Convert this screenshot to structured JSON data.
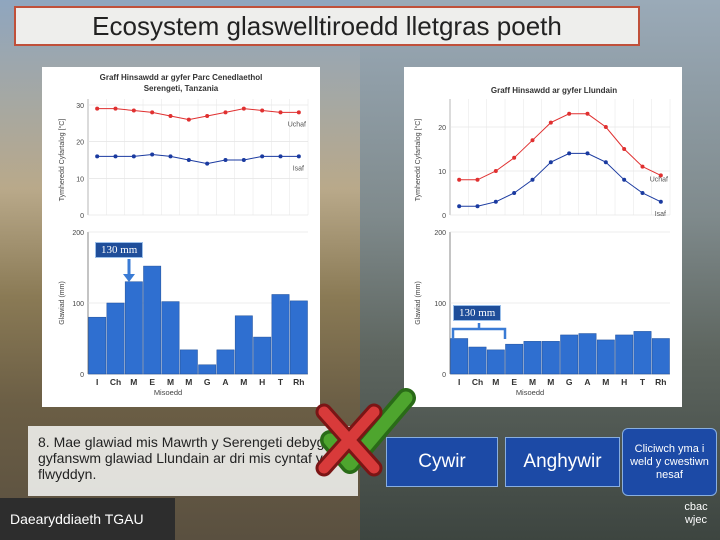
{
  "title": "Ecosystem glaswelltiroedd lletgras poeth",
  "left_chart": {
    "title_line1": "Graff Hinsawdd ar gyfer Parc Cenedlaethol",
    "title_line2": "Serengeti, Tanzania",
    "temp_ylabel": "Tymheredd Cyfartalog [°C]",
    "rain_ylabel": "Glawiad (mm)",
    "xlabel": "Misoedd",
    "label_high": "Uchaf",
    "label_low": "Isaf",
    "callout": "130 mm"
  },
  "right_chart": {
    "title": "Graff Hinsawdd ar gyfer Llundain",
    "temp_ylabel": "Tymheredd Cyfartalog [°C]",
    "rain_ylabel": "Glawiad (mm)",
    "xlabel": "Misoedd",
    "label_high": "Uchaf",
    "label_low": "Isaf",
    "callout": "130 mm"
  },
  "chart_data": [
    {
      "type": "bar",
      "title": "Graff Hinsawdd ar gyfer Parc Cenedlaethol Serengeti, Tanzania",
      "categories": [
        "I",
        "Ch",
        "M",
        "E",
        "M",
        "M",
        "G",
        "A",
        "M",
        "H",
        "T",
        "Rh"
      ],
      "temp_yticks": [
        "0",
        "10",
        "20",
        "30"
      ],
      "rain_yticks": [
        "0",
        "100",
        "200"
      ],
      "temp_ylim": [
        0,
        30
      ],
      "rain_ylim": [
        0,
        200
      ],
      "series": [
        {
          "name": "Uchaf",
          "kind": "line",
          "color": "#e03030",
          "values": [
            29,
            29,
            28.5,
            28,
            27,
            26,
            27,
            28,
            29,
            28.5,
            28,
            28
          ]
        },
        {
          "name": "Isaf",
          "kind": "line",
          "color": "#1a3aa0",
          "values": [
            16,
            16,
            16,
            16.5,
            16,
            15,
            14,
            15,
            15,
            16,
            16,
            16
          ]
        },
        {
          "name": "Glawiad",
          "kind": "bar",
          "color": "#2f6fd0",
          "values": [
            80,
            100,
            130,
            152,
            102,
            34,
            13,
            34,
            82,
            52,
            112,
            103
          ]
        }
      ]
    },
    {
      "type": "bar",
      "title": "Graff Hinsawdd ar gyfer Llundain",
      "categories": [
        "I",
        "Ch",
        "M",
        "E",
        "M",
        "M",
        "G",
        "A",
        "M",
        "H",
        "T",
        "Rh"
      ],
      "temp_yticks": [
        "0",
        "10",
        "20"
      ],
      "rain_yticks": [
        "0",
        "100",
        "200"
      ],
      "temp_ylim": [
        0,
        25
      ],
      "rain_ylim": [
        0,
        200
      ],
      "series": [
        {
          "name": "Uchaf",
          "kind": "line",
          "color": "#e03030",
          "values": [
            8,
            8,
            10,
            13,
            17,
            21,
            23,
            23,
            20,
            15,
            11,
            9
          ]
        },
        {
          "name": "Isaf",
          "kind": "line",
          "color": "#1a3aa0",
          "values": [
            2,
            2,
            3,
            5,
            8,
            12,
            14,
            14,
            12,
            8,
            5,
            3
          ]
        },
        {
          "name": "Glawiad",
          "kind": "bar",
          "color": "#2f6fd0",
          "values": [
            50,
            38,
            34,
            42,
            46,
            46,
            55,
            57,
            48,
            55,
            60,
            50
          ]
        }
      ]
    }
  ],
  "question": {
    "text": "8. Mae glawiad mis Mawrth y Serengeti debyg i gyfanswm glawiad Llundain ar dri mis cyntaf y flwyddyn."
  },
  "buttons": {
    "correct": "Cywir",
    "incorrect": "Anghywir",
    "next": "Cliciwch yma i weld y cwestiwn nesaf"
  },
  "footer": {
    "label": "Daearyddiaeth TGAU"
  },
  "logo": {
    "line1": "cbac",
    "line2": "wjec"
  },
  "colors": {
    "title_border": "#c0503a",
    "button_bg": "#1c4aa6",
    "tick_green": "#4ea52e",
    "cross_red": "#c83030"
  }
}
